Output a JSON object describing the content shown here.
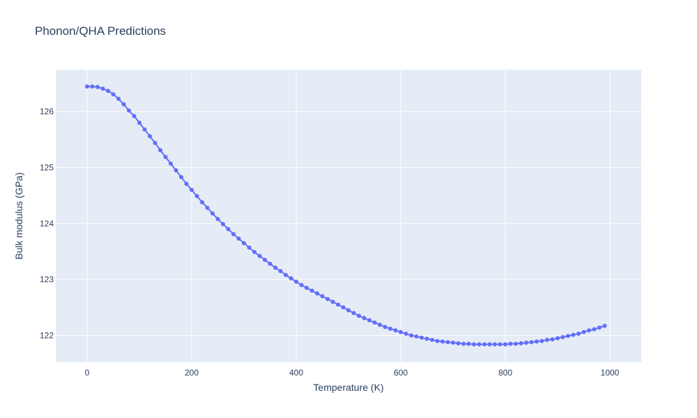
{
  "chart_data": {
    "type": "line",
    "title": "Phonon/QHA Predictions",
    "xlabel": "Temperature (K)",
    "ylabel": "Bulk modulus (GPa)",
    "xlim": [
      -60,
      1060
    ],
    "ylim": [
      121.52,
      126.75
    ],
    "x_ticks": [
      0,
      200,
      400,
      600,
      800,
      1000
    ],
    "y_ticks": [
      122,
      123,
      124,
      125,
      126
    ],
    "grid": true,
    "legend": "none",
    "colors": {
      "plot_bg": "#e5ecf6",
      "grid": "#ffffff",
      "line": "#636efa"
    },
    "series": [
      {
        "mode": "lines+markers",
        "x": [
          0,
          10,
          20,
          30,
          40,
          50,
          60,
          70,
          80,
          90,
          100,
          110,
          120,
          130,
          140,
          150,
          160,
          170,
          180,
          190,
          200,
          210,
          220,
          230,
          240,
          250,
          260,
          270,
          280,
          290,
          300,
          310,
          320,
          330,
          340,
          350,
          360,
          370,
          380,
          390,
          400,
          410,
          420,
          430,
          440,
          450,
          460,
          470,
          480,
          490,
          500,
          510,
          520,
          530,
          540,
          550,
          560,
          570,
          580,
          590,
          600,
          610,
          620,
          630,
          640,
          650,
          660,
          670,
          680,
          690,
          700,
          710,
          720,
          730,
          740,
          750,
          760,
          770,
          780,
          790,
          800,
          810,
          820,
          830,
          840,
          850,
          860,
          870,
          880,
          890,
          900,
          910,
          920,
          930,
          940,
          950,
          960,
          970,
          980,
          990
        ],
        "y": [
          126.45,
          126.45,
          126.44,
          126.41,
          126.37,
          126.31,
          126.23,
          126.13,
          126.02,
          125.92,
          125.8,
          125.68,
          125.56,
          125.44,
          125.31,
          125.19,
          125.07,
          124.95,
          124.83,
          124.71,
          124.6,
          124.49,
          124.38,
          124.28,
          124.18,
          124.08,
          123.99,
          123.9,
          123.81,
          123.73,
          123.65,
          123.57,
          123.49,
          123.42,
          123.35,
          123.28,
          123.21,
          123.15,
          123.08,
          123.02,
          122.96,
          122.9,
          122.85,
          122.8,
          122.75,
          122.7,
          122.65,
          122.6,
          122.55,
          122.5,
          122.45,
          122.4,
          122.35,
          122.31,
          122.27,
          122.23,
          122.19,
          122.15,
          122.12,
          122.09,
          122.06,
          122.03,
          122.0,
          121.98,
          121.96,
          121.94,
          121.92,
          121.9,
          121.89,
          121.88,
          121.87,
          121.86,
          121.85,
          121.85,
          121.84,
          121.84,
          121.84,
          121.84,
          121.84,
          121.84,
          121.84,
          121.85,
          121.85,
          121.86,
          121.87,
          121.88,
          121.89,
          121.9,
          121.92,
          121.93,
          121.95,
          121.97,
          121.99,
          122.01,
          122.03,
          122.06,
          122.09,
          122.11,
          122.14,
          122.17
        ]
      }
    ]
  }
}
